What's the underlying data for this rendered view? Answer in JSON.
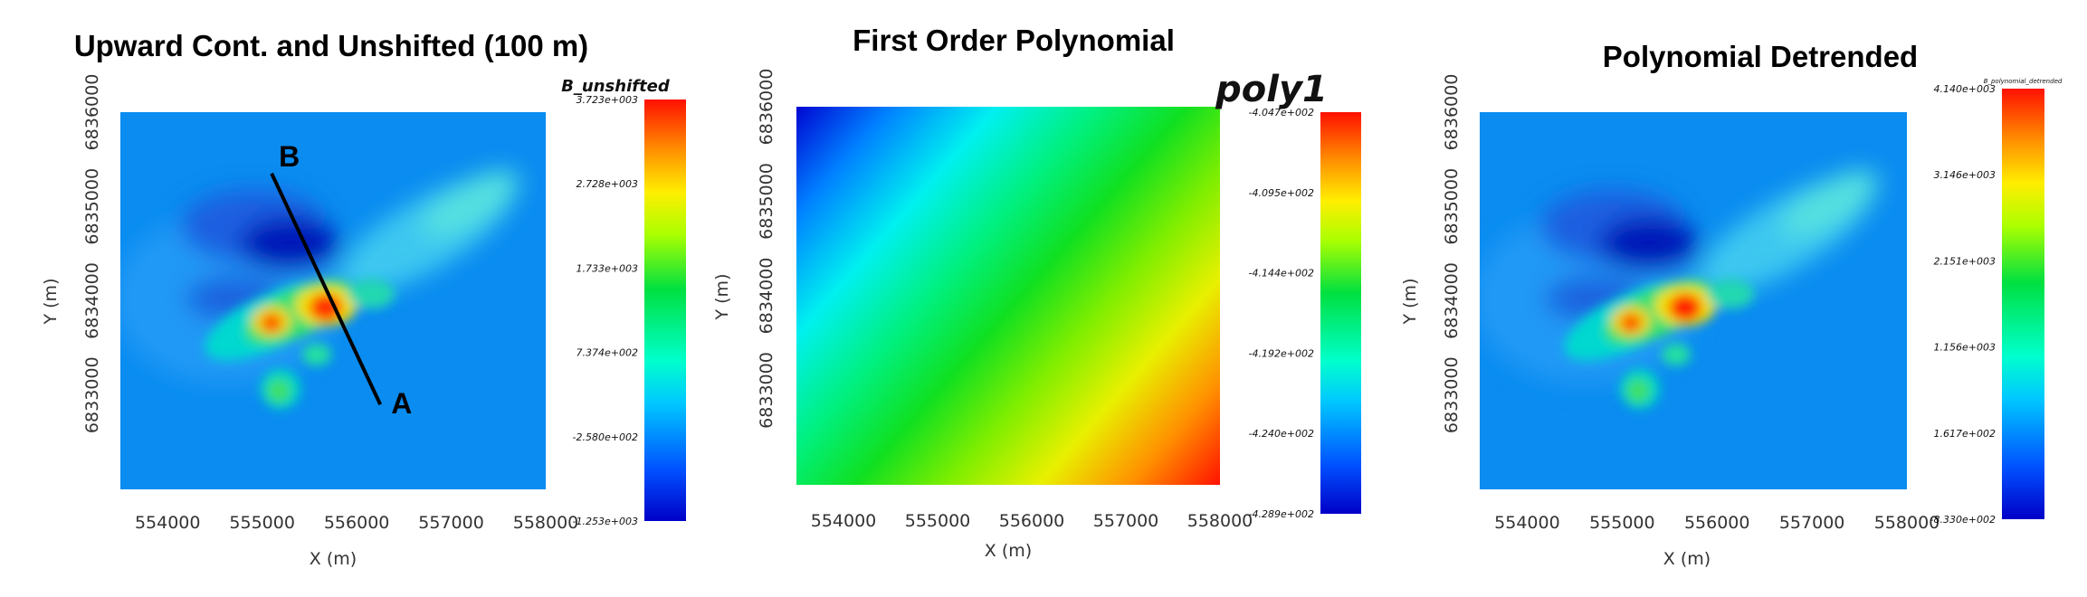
{
  "chart_data": [
    {
      "type": "heatmap",
      "title": "Upward Cont. and Unshifted (100 m)",
      "xlabel": "X (m)",
      "ylabel": "Y (m)",
      "xlim": [
        553500,
        558000
      ],
      "ylim": [
        6832000,
        6836000
      ],
      "x_ticks": [
        "554000",
        "555000",
        "556000",
        "557000",
        "558000"
      ],
      "y_ticks": [
        "6833000",
        "6834000",
        "6835000",
        "6836000"
      ],
      "colorbar": {
        "label": "B_unshifted",
        "min": -1253,
        "max": 3723,
        "ticks": [
          "3.723e+003",
          "2.728e+003",
          "1.733e+003",
          "7.374e+002",
          "-2.580e+002",
          "-1.253e+003"
        ]
      },
      "profile": {
        "start_label": "A",
        "end_label": "B",
        "start": [
          556250,
          6832900
        ],
        "end": [
          555100,
          6835350
        ]
      }
    },
    {
      "type": "heatmap",
      "title": "First Order Polynomial",
      "xlabel": "X (m)",
      "ylabel": "Y (m)",
      "xlim": [
        553500,
        558000
      ],
      "ylim": [
        6832000,
        6836000
      ],
      "x_ticks": [
        "554000",
        "555000",
        "556000",
        "557000",
        "558000"
      ],
      "y_ticks": [
        "6833000",
        "6834000",
        "6835000",
        "6836000"
      ],
      "colorbar": {
        "label": "poly1",
        "min": -428.9,
        "max": -404.7,
        "ticks": [
          "-4.047e+002",
          "-4.095e+002",
          "-4.144e+002",
          "-4.192e+002",
          "-4.240e+002",
          "-4.289e+002"
        ]
      }
    },
    {
      "type": "heatmap",
      "title": "Polynomial Detrended",
      "xlabel": "X (m)",
      "ylabel": "Y (m)",
      "xlim": [
        553500,
        558000
      ],
      "ylim": [
        6832000,
        6836000
      ],
      "x_ticks": [
        "554000",
        "555000",
        "556000",
        "557000",
        "558000"
      ],
      "y_ticks": [
        "6833000",
        "6834000",
        "6835000",
        "6836000"
      ],
      "colorbar": {
        "label": "B_polynomial_detrended",
        "min": -833,
        "max": 4140,
        "ticks": [
          "4.140e+003",
          "3.146e+003",
          "2.151e+003",
          "1.156e+003",
          "1.617e+002",
          "-8.330e+002"
        ]
      }
    }
  ]
}
